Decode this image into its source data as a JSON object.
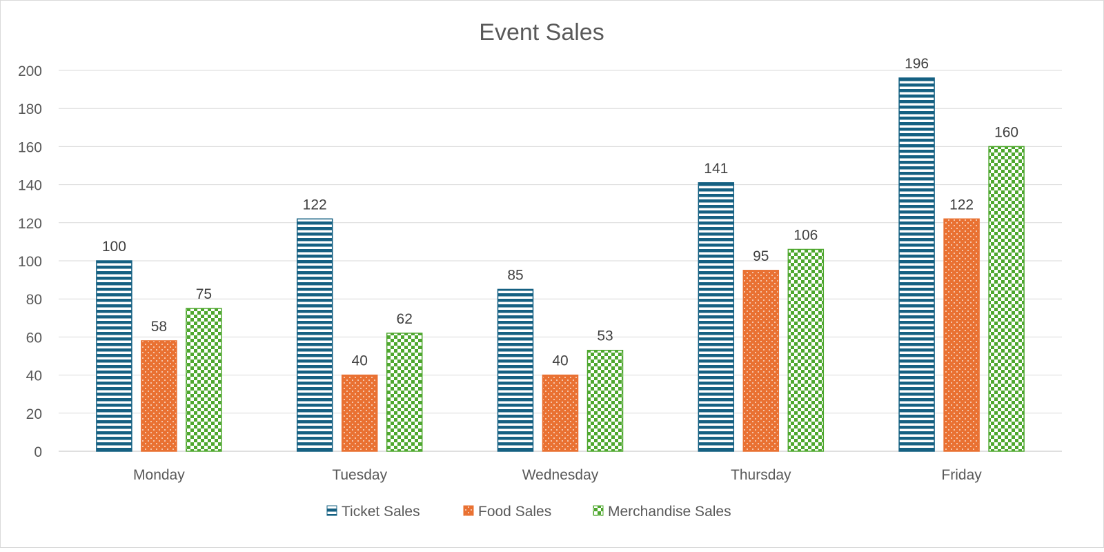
{
  "chart_data": {
    "type": "bar",
    "title": "Event Sales",
    "xlabel": "",
    "ylabel": "",
    "categories": [
      "Monday",
      "Tuesday",
      "Wednesday",
      "Thursday",
      "Friday"
    ],
    "series": [
      {
        "name": "Ticket Sales",
        "values": [
          100,
          122,
          85,
          141,
          196
        ],
        "color": "#156082",
        "pattern": "horizontal-stripes"
      },
      {
        "name": "Food Sales",
        "values": [
          58,
          40,
          40,
          95,
          122
        ],
        "color": "#E97132",
        "pattern": "dots"
      },
      {
        "name": "Merchandise Sales",
        "values": [
          75,
          62,
          53,
          106,
          160
        ],
        "color": "#4EA72E",
        "pattern": "checkerboard"
      }
    ],
    "ylim": [
      0,
      200
    ],
    "yticks": [
      "0",
      "20",
      "40",
      "60",
      "80",
      "100",
      "120",
      "140",
      "160",
      "180",
      "200"
    ],
    "grid": true,
    "legend_position": "bottom",
    "data_labels": true
  }
}
